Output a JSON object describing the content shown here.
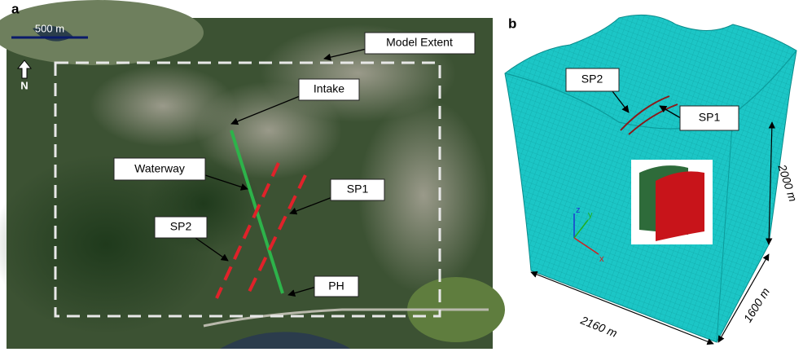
{
  "panels": {
    "a": {
      "label": "a",
      "scale_bar": "500 m",
      "north": "N",
      "callouts": [
        "Model Extent",
        "Intake",
        "Waterway",
        "SP1",
        "SP2",
        "PH"
      ]
    },
    "b": {
      "label": "b",
      "callouts": [
        "SP2",
        "SP1"
      ],
      "dimensions": [
        "2000 m",
        "2160 m",
        "1600 m"
      ],
      "axes": [
        "z",
        "y",
        "x"
      ]
    }
  }
}
